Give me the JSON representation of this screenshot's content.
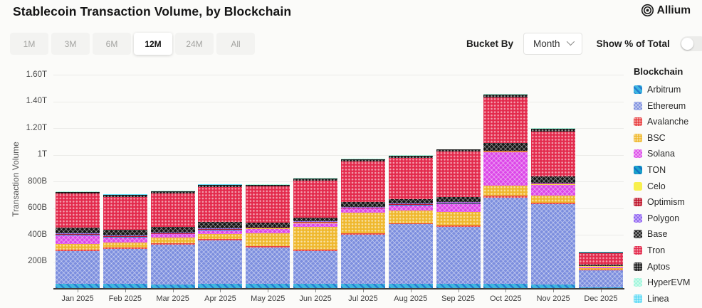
{
  "header": {
    "title": "Stablecoin Transaction Volume, by Blockchain",
    "brand": "Allium"
  },
  "controls": {
    "range_tabs": [
      {
        "label": "1M",
        "selected": false
      },
      {
        "label": "3M",
        "selected": false
      },
      {
        "label": "6M",
        "selected": false
      },
      {
        "label": "12M",
        "selected": true
      },
      {
        "label": "24M",
        "selected": false
      },
      {
        "label": "All",
        "selected": false
      }
    ],
    "bucket_by": {
      "label": "Bucket By",
      "value": "Month"
    },
    "show_pct": {
      "label": "Show % of Total",
      "on": false
    }
  },
  "chart_data": {
    "type": "bar",
    "stacked": true,
    "title": "Stablecoin Transaction Volume, by Blockchain",
    "ylabel": "Transaction Volume",
    "unit": "B",
    "ylim": [
      0,
      1600
    ],
    "grid": true,
    "legend_position": "right",
    "legend_title": "Blockchain",
    "y_ticks": [
      {
        "value": 200,
        "label": "200B"
      },
      {
        "value": 400,
        "label": "400B"
      },
      {
        "value": 600,
        "label": "600B"
      },
      {
        "value": 800,
        "label": "800B"
      },
      {
        "value": 1000,
        "label": "1T"
      },
      {
        "value": 1200,
        "label": "1.20T"
      },
      {
        "value": 1400,
        "label": "1.40T"
      },
      {
        "value": 1600,
        "label": "1.60T"
      }
    ],
    "categories": [
      "Jan 2025",
      "Feb 2025",
      "Mar 2025",
      "Apr 2025",
      "May 2025",
      "Jun 2025",
      "Jul 2025",
      "Aug 2025",
      "Sep 2025",
      "Oct 2025",
      "Nov 2025",
      "Dec 2025"
    ],
    "series": [
      {
        "name": "Arbitrum",
        "color": "#3EB6E0",
        "pattern": "diag",
        "values": [
          30,
          30,
          28,
          30,
          30,
          30,
          30,
          30,
          30,
          30,
          28,
          5
        ]
      },
      {
        "name": "Ethereum",
        "color": "#7C8EDE",
        "pattern": "cross",
        "values": [
          250,
          265,
          300,
          330,
          275,
          250,
          370,
          450,
          430,
          650,
          600,
          130
        ]
      },
      {
        "name": "Avalanche",
        "color": "#E84142",
        "pattern": "dots",
        "values": [
          10,
          8,
          8,
          8,
          8,
          10,
          10,
          8,
          10,
          15,
          10,
          3
        ]
      },
      {
        "name": "BSC",
        "color": "#EFB82D",
        "pattern": "dots",
        "values": [
          40,
          36,
          45,
          36,
          100,
          170,
          155,
          95,
          100,
          72,
          56,
          10
        ]
      },
      {
        "name": "Solana",
        "color": "#DC46E8",
        "pattern": "cross",
        "values": [
          65,
          42,
          22,
          30,
          28,
          25,
          30,
          38,
          62,
          250,
          78,
          13
        ]
      },
      {
        "name": "TON",
        "color": "#1AA3C9",
        "pattern": "diag",
        "values": [
          3,
          3,
          3,
          3,
          3,
          3,
          3,
          3,
          3,
          3,
          3,
          1
        ]
      },
      {
        "name": "Celo",
        "color": "#F8F04D",
        "pattern": "solid",
        "values": [
          2,
          2,
          2,
          2,
          2,
          2,
          2,
          2,
          2,
          2,
          2,
          1
        ]
      },
      {
        "name": "Optimism",
        "color": "#BE1329",
        "pattern": "dots",
        "values": [
          5,
          5,
          5,
          5,
          5,
          5,
          5,
          5,
          5,
          5,
          5,
          2
        ]
      },
      {
        "name": "Polygon",
        "color": "#8A5CF0",
        "pattern": "cross",
        "values": [
          5,
          5,
          5,
          5,
          5,
          5,
          5,
          5,
          5,
          5,
          5,
          2
        ]
      },
      {
        "name": "Base",
        "color": "#161616",
        "pattern": "cross",
        "values": [
          42,
          42,
          42,
          47,
          35,
          30,
          35,
          30,
          36,
          55,
          50,
          8
        ]
      },
      {
        "name": "Tron",
        "color": "#E32A4C",
        "pattern": "dots",
        "values": [
          255,
          245,
          250,
          260,
          270,
          275,
          305,
          310,
          340,
          340,
          335,
          85
        ]
      },
      {
        "name": "Aptos",
        "color": "#161616",
        "pattern": "dots",
        "values": [
          15,
          15,
          18,
          18,
          15,
          18,
          18,
          18,
          15,
          25,
          25,
          8
        ]
      },
      {
        "name": "HyperEVM",
        "color": "#9AF6D9",
        "pattern": "cross",
        "values": [
          2,
          2,
          2,
          2,
          2,
          2,
          2,
          2,
          2,
          2,
          2,
          1
        ]
      },
      {
        "name": "Linea",
        "color": "#5EDAF4",
        "pattern": "dots",
        "values": [
          2,
          2,
          2,
          2,
          2,
          2,
          2,
          2,
          2,
          2,
          2,
          1
        ]
      }
    ]
  }
}
